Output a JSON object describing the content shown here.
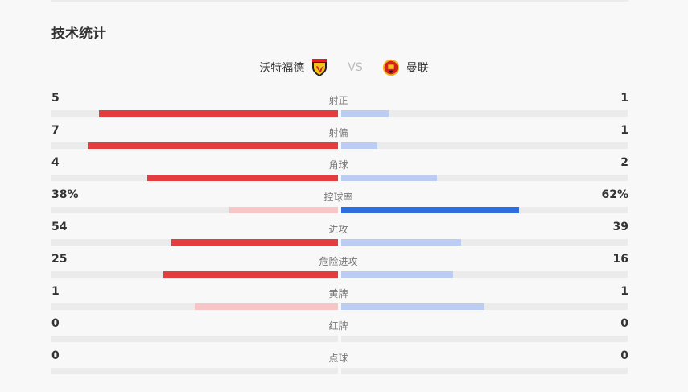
{
  "title": "技术统计",
  "home": {
    "name": "沃特福德",
    "logo": "watford-crest-icon"
  },
  "vs": "VS",
  "away": {
    "name": "曼联",
    "logo": "manchester-united-crest-icon"
  },
  "colors": {
    "home_strong": "#e33d40",
    "home_weak": "#f7c5c5",
    "away_strong": "#2f6fdc",
    "away_weak": "#bccdf4",
    "track": "#ebebeb"
  },
  "stats": [
    {
      "label": "射正",
      "home": "5",
      "away": "1",
      "hv": 5,
      "av": 1
    },
    {
      "label": "射偏",
      "home": "7",
      "away": "1",
      "hv": 7,
      "av": 1
    },
    {
      "label": "角球",
      "home": "4",
      "away": "2",
      "hv": 4,
      "av": 2
    },
    {
      "label": "控球率",
      "home": "38%",
      "away": "62%",
      "hv": 38,
      "av": 62
    },
    {
      "label": "进攻",
      "home": "54",
      "away": "39",
      "hv": 54,
      "av": 39
    },
    {
      "label": "危险进攻",
      "home": "25",
      "away": "16",
      "hv": 25,
      "av": 16
    },
    {
      "label": "黄牌",
      "home": "1",
      "away": "1",
      "hv": 1,
      "av": 1
    },
    {
      "label": "红牌",
      "home": "0",
      "away": "0",
      "hv": 0,
      "av": 0
    },
    {
      "label": "点球",
      "home": "0",
      "away": "0",
      "hv": 0,
      "av": 0
    }
  ]
}
